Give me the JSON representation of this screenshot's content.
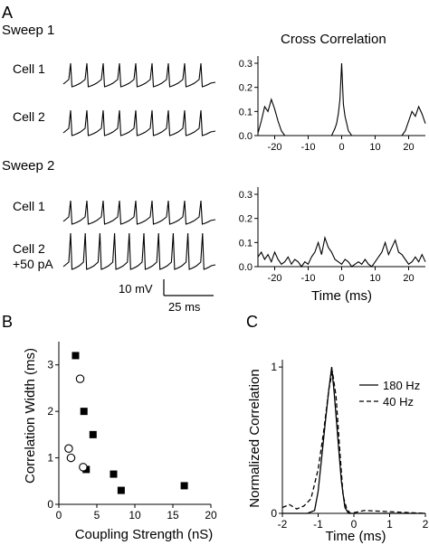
{
  "panel_labels": {
    "a": "A",
    "b": "B",
    "c": "C"
  },
  "panel_a": {
    "sweep1_label": "Sweep 1",
    "sweep2_label": "Sweep 2",
    "cell1_label": "Cell 1",
    "cell2_label": "Cell 2",
    "cell2b_label_line1": "Cell 2",
    "cell2b_label_line2": "+50 pA",
    "scale_mv": "10 mV",
    "scale_ms": "25 ms",
    "cc_title": "Cross Correlation"
  },
  "chart_data": [
    {
      "id": "a-traces",
      "type": "line",
      "description": "Membrane potential spike trains",
      "traces": [
        {
          "name": "Cell 1",
          "sweep": 1,
          "spikes": 9
        },
        {
          "name": "Cell 2",
          "sweep": 1,
          "spikes": 9
        },
        {
          "name": "Cell 1",
          "sweep": 2,
          "spikes": 9
        },
        {
          "name": "Cell 2",
          "sweep": 2,
          "spikes": 10
        }
      ]
    },
    {
      "id": "a-cc-sweep1",
      "type": "line",
      "xlabel": "",
      "ylabel": "",
      "xlim": [
        -25,
        25
      ],
      "ylim": [
        0,
        0.33
      ],
      "xticks": [
        -20,
        -10,
        0,
        10,
        20
      ],
      "xtick_labels": [
        "-20",
        "-10",
        "0",
        "10",
        "20"
      ],
      "yticks": [
        0,
        0.1,
        0.2,
        0.3
      ],
      "ytick_labels": [
        "0.0",
        "0.1",
        "0.2",
        "0.3"
      ],
      "x": [
        -25,
        -24,
        -23,
        -22,
        -21,
        -20,
        -19,
        -18,
        -17,
        -16,
        -15,
        -10,
        -5,
        -3,
        -2,
        -1.5,
        -1,
        -0.5,
        0,
        0.5,
        1,
        1.5,
        2,
        2.5,
        3,
        4,
        5,
        10,
        15,
        18,
        19,
        20,
        21,
        22,
        23,
        24,
        25
      ],
      "y": [
        0.01,
        0.06,
        0.12,
        0.1,
        0.15,
        0.11,
        0.06,
        0.02,
        0,
        0,
        0,
        0,
        0,
        0,
        0.03,
        0.05,
        0.09,
        0.15,
        0.3,
        0.13,
        0.08,
        0.05,
        0.02,
        0.01,
        0,
        0,
        0,
        0,
        0,
        0,
        0.02,
        0.06,
        0.1,
        0.08,
        0.12,
        0.09,
        0.05
      ]
    },
    {
      "id": "a-cc-sweep2",
      "type": "line",
      "xlabel": "Time (ms)",
      "ylabel": "",
      "xlim": [
        -25,
        25
      ],
      "ylim": [
        0,
        0.33
      ],
      "xticks": [
        -20,
        -10,
        0,
        10,
        20
      ],
      "xtick_labels": [
        "-20",
        "-10",
        "0",
        "10",
        "20"
      ],
      "yticks": [
        0,
        0.1,
        0.2,
        0.3
      ],
      "ytick_labels": [
        "0.0",
        "0.1",
        "0.2",
        "0.3"
      ],
      "x": [
        -25,
        -24,
        -23,
        -22,
        -21,
        -20,
        -19,
        -18,
        -17,
        -16,
        -15,
        -14,
        -13,
        -12,
        -11,
        -10,
        -9,
        -8,
        -7,
        -6,
        -5,
        -4,
        -3,
        -2,
        -1,
        0,
        1,
        2,
        3,
        4,
        5,
        6,
        7,
        8,
        9,
        10,
        11,
        12,
        13,
        14,
        15,
        16,
        17,
        18,
        19,
        20,
        21,
        22,
        23,
        24,
        25
      ],
      "y": [
        0.04,
        0.06,
        0.03,
        0.05,
        0.02,
        0.06,
        0.03,
        0.01,
        0.02,
        0.04,
        0.01,
        0.03,
        0.02,
        0.0,
        0.02,
        0.01,
        0.04,
        0.06,
        0.1,
        0.05,
        0.12,
        0.08,
        0.06,
        0.03,
        0.02,
        0.01,
        0.03,
        0.02,
        0.0,
        0.01,
        0.02,
        0.01,
        0.03,
        0.01,
        0.0,
        0.02,
        0.04,
        0.06,
        0.1,
        0.05,
        0.08,
        0.11,
        0.06,
        0.05,
        0.03,
        0.01,
        0.02,
        0.04,
        0.02,
        0.05,
        0.02
      ]
    },
    {
      "id": "b",
      "type": "scatter",
      "xlabel": "Coupling Strength (nS)",
      "ylabel": "Correlation Width (ms)",
      "xlim": [
        0,
        20
      ],
      "ylim": [
        0,
        3.5
      ],
      "xticks": [
        0,
        5,
        10,
        15,
        20
      ],
      "xtick_labels": [
        "0",
        "5",
        "10",
        "15",
        "20"
      ],
      "yticks": [
        0,
        1,
        2,
        3
      ],
      "ytick_labels": [
        "0",
        "1",
        "2",
        "3"
      ],
      "series": [
        {
          "marker": "filled-square",
          "x": [
            2.2,
            3.3,
            4.5,
            3.6,
            7.2,
            8.2,
            16.5
          ],
          "y": [
            3.2,
            2.0,
            1.5,
            0.75,
            0.65,
            0.3,
            0.4
          ]
        },
        {
          "marker": "open-circle",
          "x": [
            2.8,
            1.3,
            1.6,
            3.2
          ],
          "y": [
            2.7,
            1.2,
            1.0,
            0.8
          ]
        }
      ]
    },
    {
      "id": "c",
      "type": "line",
      "xlabel": "Time (ms)",
      "ylabel": "Normalized Correlation",
      "xlim": [
        -2,
        2
      ],
      "ylim": [
        0,
        1.05
      ],
      "xticks": [
        -2,
        -1,
        0,
        1,
        2
      ],
      "xtick_labels": [
        "-2",
        "-1",
        "0",
        "1",
        "2"
      ],
      "yticks": [
        0,
        1
      ],
      "ytick_labels": [
        "0",
        "1"
      ],
      "series": [
        {
          "name": "180 Hz",
          "style": "solid",
          "x": [
            -2,
            -1.3,
            -1.1,
            -1.0,
            -0.9,
            -0.8,
            -0.7,
            -0.62,
            -0.55,
            -0.45,
            -0.35,
            -0.25,
            -0.15,
            0,
            2
          ],
          "y": [
            0,
            0,
            0.02,
            0.15,
            0.38,
            0.62,
            0.85,
            1.0,
            0.82,
            0.52,
            0.22,
            0.04,
            0,
            0,
            0
          ]
        },
        {
          "name": "40 Hz",
          "style": "dashed",
          "x": [
            -2,
            -1.8,
            -1.6,
            -1.4,
            -1.2,
            -1.0,
            -0.85,
            -0.7,
            -0.6,
            -0.5,
            -0.4,
            -0.3,
            -0.2,
            -0.1,
            0.3,
            2
          ],
          "y": [
            0.04,
            0.06,
            0.03,
            0.05,
            0.1,
            0.3,
            0.55,
            0.85,
            0.97,
            0.8,
            0.45,
            0.12,
            0.03,
            0,
            0.02,
            0
          ]
        }
      ]
    }
  ]
}
